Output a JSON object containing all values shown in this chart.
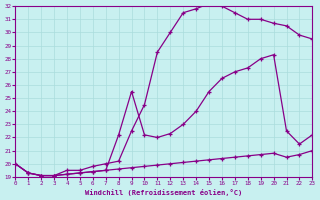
{
  "xlabel": "Windchill (Refroidissement éolien,°C)",
  "bg_color": "#c8f0f0",
  "grid_color": "#aadddd",
  "line_color": "#880088",
  "ylim": [
    19,
    32
  ],
  "xlim": [
    0,
    23
  ],
  "yticks": [
    19,
    20,
    21,
    22,
    23,
    24,
    25,
    26,
    27,
    28,
    29,
    30,
    31,
    32
  ],
  "xticks": [
    0,
    1,
    2,
    3,
    4,
    5,
    6,
    7,
    8,
    9,
    10,
    11,
    12,
    13,
    14,
    15,
    16,
    17,
    18,
    19,
    20,
    21,
    22,
    23
  ],
  "line1_x": [
    0,
    1,
    2,
    3,
    4,
    5,
    6,
    7,
    8,
    9,
    10,
    11,
    12,
    13,
    14,
    15,
    16,
    17,
    18,
    19,
    20,
    21,
    22,
    23
  ],
  "line1_y": [
    20.0,
    19.3,
    19.1,
    19.1,
    19.2,
    19.3,
    19.4,
    19.5,
    19.6,
    19.7,
    19.8,
    19.9,
    20.0,
    20.1,
    20.2,
    20.3,
    20.4,
    20.5,
    20.6,
    20.7,
    20.8,
    20.5,
    20.7,
    21.0
  ],
  "line2_x": [
    0,
    1,
    2,
    3,
    4,
    5,
    6,
    7,
    8,
    9,
    10,
    11,
    12,
    13,
    14,
    15,
    16,
    17,
    18,
    19,
    20,
    21,
    22,
    23
  ],
  "line2_y": [
    20.0,
    19.3,
    19.1,
    19.1,
    19.2,
    19.3,
    19.4,
    19.5,
    22.2,
    25.5,
    22.2,
    22.0,
    22.3,
    23.0,
    24.0,
    25.5,
    26.5,
    27.0,
    27.3,
    28.0,
    28.3,
    22.5,
    21.5,
    22.2
  ],
  "line3_x": [
    0,
    1,
    2,
    3,
    4,
    5,
    6,
    7,
    8,
    9,
    10,
    11,
    12,
    13,
    14,
    15,
    16,
    17,
    18,
    19,
    20,
    21,
    22,
    23
  ],
  "line3_y": [
    20.0,
    19.3,
    19.1,
    19.1,
    19.5,
    19.5,
    19.8,
    20.0,
    20.2,
    22.5,
    24.5,
    28.5,
    30.0,
    31.5,
    31.8,
    32.2,
    32.0,
    31.5,
    31.0,
    31.0,
    30.7,
    30.5,
    29.8,
    29.5
  ]
}
